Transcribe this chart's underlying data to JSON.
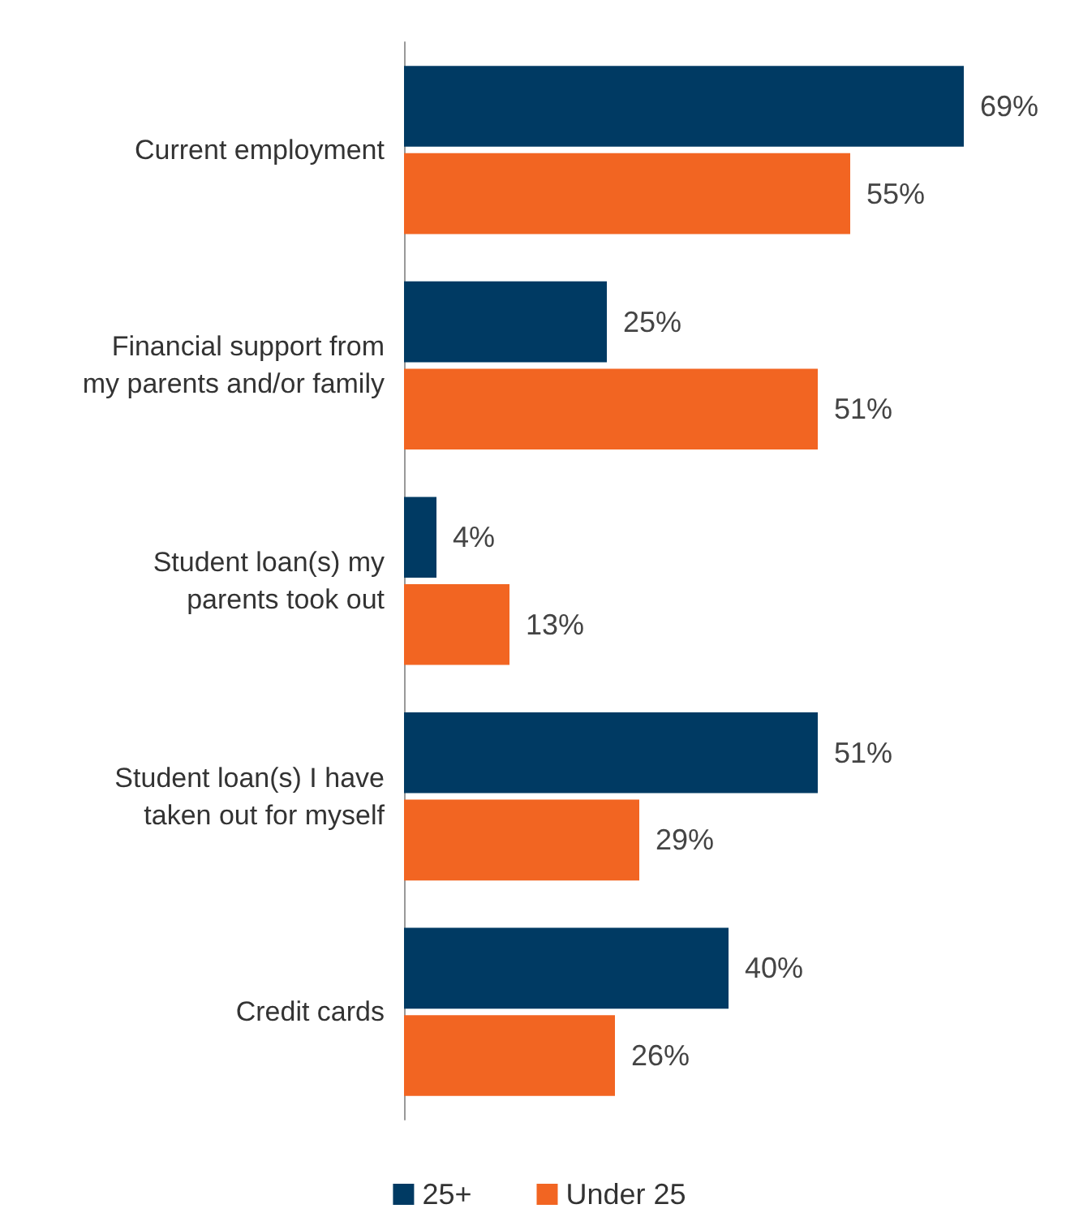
{
  "chart_data": {
    "type": "bar",
    "orientation": "horizontal",
    "categories": [
      "Current employment",
      "Financial support from\nmy parents and/or family",
      "Student loan(s) my\nparents took out",
      "Student loan(s) I have\ntaken out for myself",
      "Credit cards"
    ],
    "series": [
      {
        "name": "25+",
        "color": "#003a63",
        "values": [
          69,
          25,
          4,
          51,
          40
        ],
        "value_labels": [
          "69%",
          "25%",
          "4%",
          "51%",
          "40%"
        ]
      },
      {
        "name": "Under 25",
        "color": "#f26522",
        "values": [
          55,
          51,
          13,
          29,
          26
        ],
        "value_labels": [
          "55%",
          "51%",
          "13%",
          "29%",
          "26%"
        ]
      }
    ],
    "legend": "bottom"
  }
}
